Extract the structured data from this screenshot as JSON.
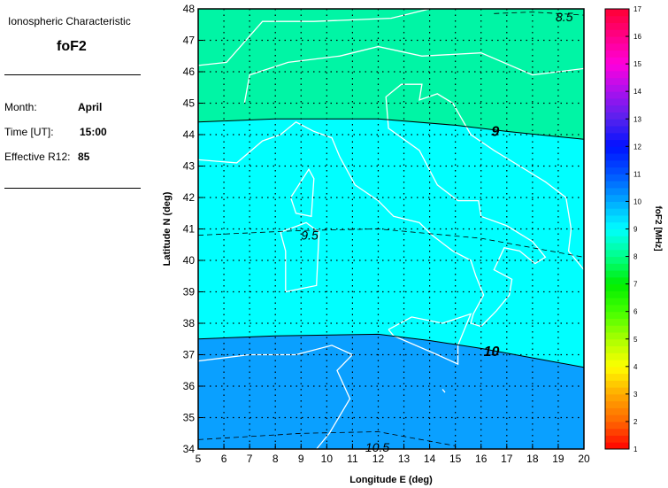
{
  "panel": {
    "heading": "Ionospheric Characteristic",
    "characteristic": "foF2",
    "month_label": "Month:",
    "month_value": "April",
    "time_label": "Time [UT]:",
    "time_value": "15:00",
    "r12_label": "Effective R12:",
    "r12_value": "85"
  },
  "map": {
    "xlabel": "Longitude E (deg)",
    "ylabel": "Latitude N (deg)",
    "lon_range": [
      5,
      20
    ],
    "lat_range": [
      34,
      48
    ],
    "lon_ticks": [
      "5",
      "6",
      "7",
      "8",
      "9",
      "10",
      "11",
      "12",
      "13",
      "14",
      "15",
      "16",
      "17",
      "18",
      "19",
      "20"
    ],
    "lat_ticks": [
      "34",
      "35",
      "36",
      "37",
      "38",
      "39",
      "40",
      "41",
      "42",
      "43",
      "44",
      "45",
      "46",
      "47",
      "48"
    ],
    "grid": "dotted",
    "contour_labels": [
      "8.5",
      "9",
      "9.5",
      "10",
      "10.5"
    ],
    "band_colors": {
      "8.5-9": "#00f5a5",
      "9-10": "#00ffff",
      "10-10.5": "#0aa0ff"
    },
    "coastline_color": "#ffffff"
  },
  "colorbar": {
    "label": "foF2 [MHz]",
    "range": [
      1,
      17
    ],
    "ticks": [
      "1",
      "2",
      "3",
      "4",
      "5",
      "6",
      "7",
      "8",
      "9",
      "10",
      "11",
      "12",
      "13",
      "14",
      "15",
      "16",
      "17"
    ],
    "colors": [
      "#ff0000",
      "#ff6600",
      "#ffaa00",
      "#ffff00",
      "#aaff00",
      "#44ff00",
      "#00ee00",
      "#00ff88",
      "#00ffff",
      "#00aaff",
      "#0055ff",
      "#0011ff",
      "#5522ee",
      "#aa11ee",
      "#ff00dd",
      "#ff0088",
      "#ff0033"
    ]
  }
}
